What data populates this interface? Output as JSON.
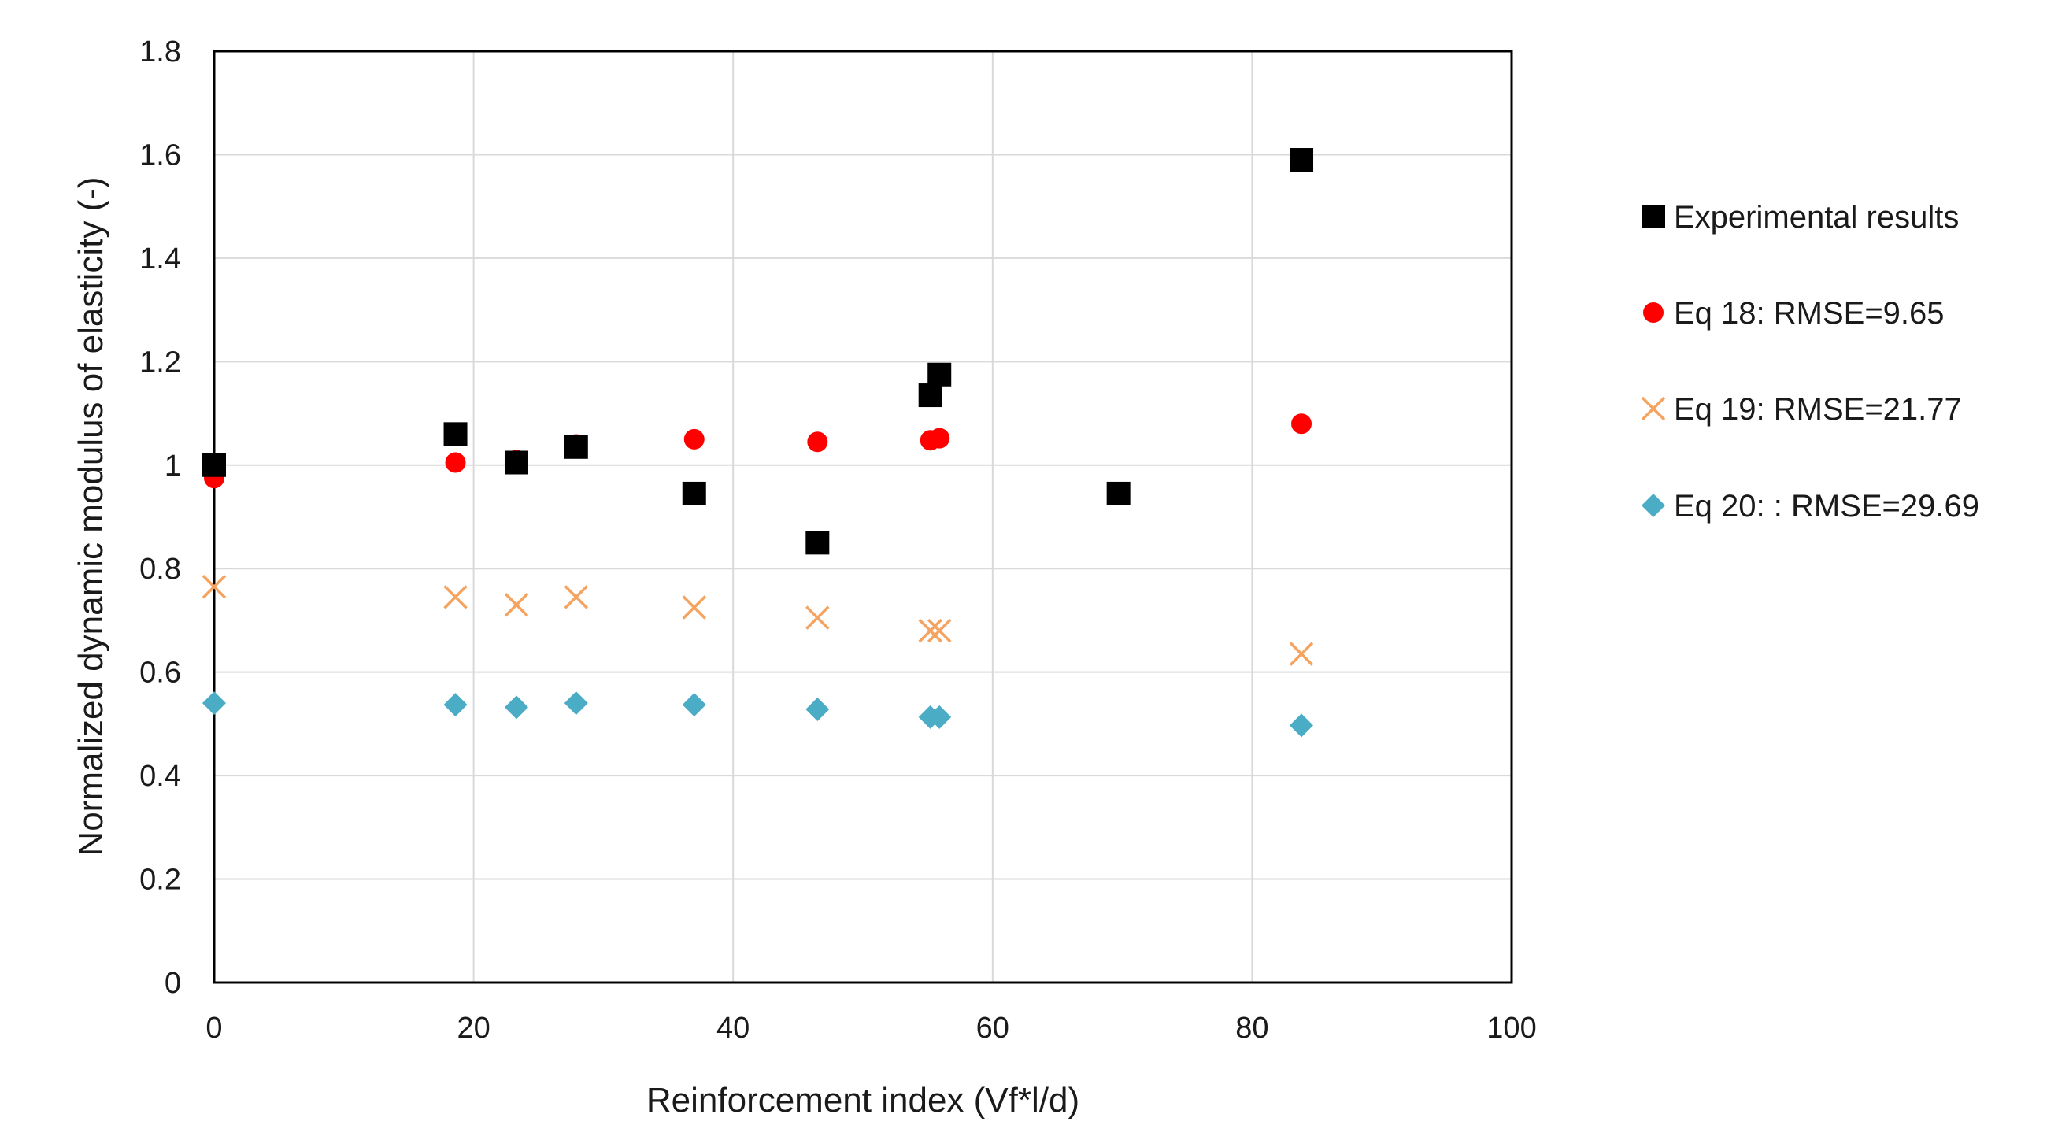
{
  "chart_data": {
    "type": "scatter",
    "title": "",
    "xlabel": "Reinforcement index (Vf*l/d)",
    "ylabel": "Normalized dynamic modulus of elasticity  (-)",
    "xlim": [
      0,
      100
    ],
    "ylim": [
      0,
      1.8
    ],
    "xticks": [
      0,
      20,
      40,
      60,
      80,
      100
    ],
    "yticks": [
      0,
      0.2,
      0.4,
      0.6,
      0.8,
      1,
      1.2,
      1.4,
      1.6,
      1.8
    ],
    "xtick_labels": [
      "0",
      "20",
      "40",
      "60",
      "80",
      "100"
    ],
    "ytick_labels": [
      "0",
      "0.2",
      "0.4",
      "0.6",
      "0.8",
      "1",
      "1.2",
      "1.4",
      "1.6",
      "1.8"
    ],
    "grid": true,
    "legend_position": "right",
    "series": [
      {
        "name": "Experimental results",
        "marker": "square",
        "color": "#000000",
        "x": [
          0,
          18.6,
          23.3,
          27.9,
          37,
          46.5,
          55.2,
          55.9,
          69.7,
          83.8
        ],
        "y": [
          1.0,
          1.06,
          1.005,
          1.035,
          0.945,
          0.85,
          1.135,
          1.175,
          0.945,
          1.59
        ]
      },
      {
        "name": "Eq 18: RMSE=9.65",
        "marker": "circle",
        "color": "#ff0000",
        "x": [
          0,
          18.6,
          23.3,
          27.9,
          37,
          46.5,
          55.2,
          55.9,
          83.8
        ],
        "y": [
          0.975,
          1.005,
          1.01,
          1.04,
          1.05,
          1.045,
          1.048,
          1.052,
          1.08
        ]
      },
      {
        "name": "Eq 19: RMSE=21.77",
        "marker": "x",
        "color": "#f4a460",
        "x": [
          0,
          18.6,
          23.3,
          27.9,
          37,
          46.5,
          55.2,
          55.9,
          83.8
        ],
        "y": [
          0.765,
          0.745,
          0.73,
          0.745,
          0.725,
          0.705,
          0.68,
          0.68,
          0.635
        ]
      },
      {
        "name": "Eq 20: : RMSE=29.69",
        "marker": "diamond",
        "color": "#4bacc6",
        "x": [
          0,
          18.6,
          23.3,
          27.9,
          37,
          46.5,
          55.2,
          55.9,
          83.8
        ],
        "y": [
          0.54,
          0.537,
          0.532,
          0.54,
          0.537,
          0.528,
          0.513,
          0.513,
          0.497
        ]
      }
    ]
  }
}
